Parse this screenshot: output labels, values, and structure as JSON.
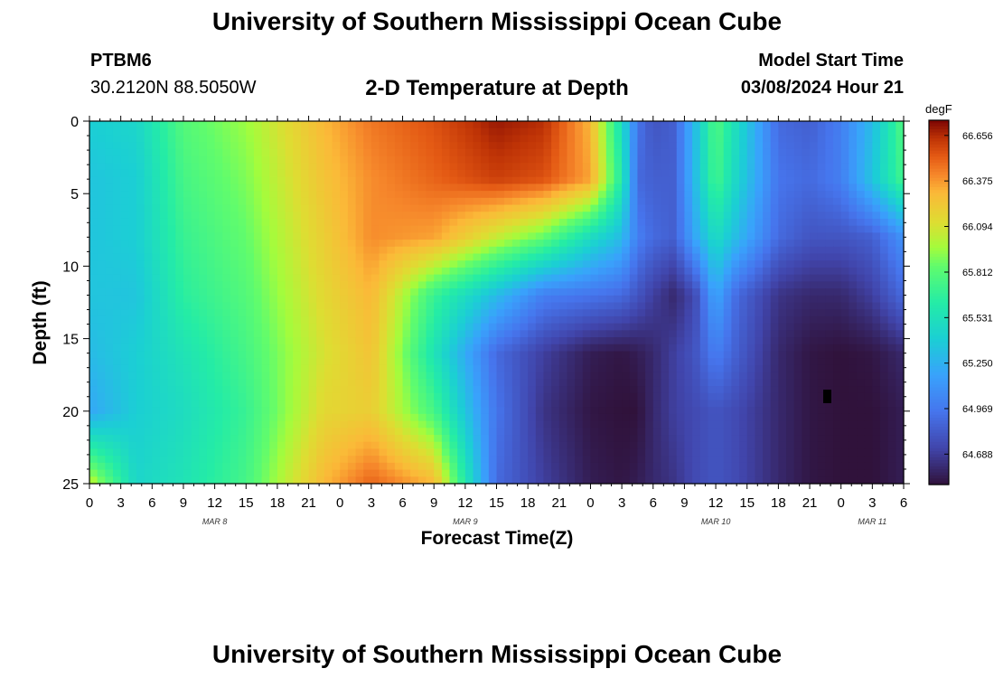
{
  "header": {
    "title": "University of Southern Mississippi Ocean Cube",
    "station_id": "PTBM6",
    "coordinates": "30.2120N  88.5050W",
    "subtitle": "2-D Temperature at Depth",
    "model_start_label": "Model Start Time",
    "model_start_value": "03/08/2024 Hour 21"
  },
  "footer": {
    "title": "University of Southern Mississippi Ocean Cube"
  },
  "colorbar": {
    "unit": "degF",
    "ticks": [
      "66.656",
      "66.375",
      "66.094",
      "65.812",
      "65.531",
      "65.250",
      "64.969",
      "64.688"
    ],
    "min": 64.5,
    "max": 66.75
  },
  "chart_data": {
    "type": "heatmap",
    "title": "2-D Temperature at Depth",
    "xlabel": "Forecast Time(Z)",
    "ylabel": "Depth (ft)",
    "x_tick_labels": [
      "0",
      "3",
      "6",
      "9",
      "12",
      "15",
      "18",
      "21",
      "0",
      "3",
      "6",
      "9",
      "12",
      "15",
      "18",
      "21",
      "0",
      "3",
      "6",
      "9",
      "12",
      "15",
      "18",
      "21",
      "0",
      "3",
      "6"
    ],
    "x_range_hours": [
      0,
      78
    ],
    "date_labels": [
      {
        "hour": 12,
        "label": "MAR 8"
      },
      {
        "hour": 36,
        "label": "MAR 9"
      },
      {
        "hour": 60,
        "label": "MAR 10"
      },
      {
        "hour": 75,
        "label": "MAR 11"
      }
    ],
    "y_tick_labels": [
      "0",
      "5",
      "10",
      "15",
      "20",
      "25"
    ],
    "y_range_ft": [
      0,
      25
    ],
    "value_unit": "degF",
    "value_range": [
      64.5,
      66.75
    ],
    "description_grid": {
      "time_hours": [
        0,
        4.5,
        9,
        15,
        22.5,
        27,
        33,
        39,
        43.5,
        48,
        51,
        52.5,
        54,
        56,
        58,
        60,
        62,
        66,
        69,
        72,
        75,
        78
      ],
      "depth_ft": [
        0,
        4,
        8,
        12,
        16,
        20,
        25
      ],
      "temp_degF": [
        [
          65.4,
          65.45,
          65.8,
          65.95,
          66.3,
          66.45,
          66.55,
          66.7,
          66.65,
          66.3,
          65.5,
          64.95,
          64.8,
          64.85,
          65.3,
          65.8,
          65.5,
          64.9,
          64.85,
          65.0,
          65.3,
          65.8
        ],
        [
          65.35,
          65.4,
          65.75,
          65.9,
          66.25,
          66.4,
          66.5,
          66.6,
          66.55,
          66.35,
          65.6,
          64.9,
          64.85,
          64.85,
          65.3,
          65.75,
          65.45,
          64.95,
          64.9,
          65.0,
          65.35,
          65.75
        ],
        [
          65.35,
          65.4,
          65.7,
          65.85,
          66.2,
          66.4,
          66.35,
          66.05,
          65.85,
          65.5,
          65.3,
          65.0,
          64.9,
          64.85,
          65.2,
          65.5,
          65.3,
          64.9,
          64.8,
          64.8,
          64.85,
          65.1
        ],
        [
          65.35,
          65.35,
          65.65,
          65.8,
          66.15,
          66.3,
          65.7,
          65.3,
          65.0,
          64.95,
          64.9,
          64.8,
          64.7,
          64.6,
          64.75,
          65.2,
          64.9,
          64.65,
          64.6,
          64.6,
          64.7,
          64.9
        ],
        [
          65.3,
          65.4,
          65.55,
          65.75,
          66.1,
          66.25,
          65.55,
          64.9,
          64.7,
          64.55,
          64.52,
          64.55,
          64.6,
          64.7,
          64.8,
          65.0,
          64.85,
          64.6,
          64.52,
          64.5,
          64.52,
          64.6
        ],
        [
          65.2,
          65.4,
          65.5,
          65.7,
          66.15,
          66.2,
          65.75,
          64.95,
          64.65,
          64.52,
          64.5,
          64.5,
          64.6,
          64.7,
          64.75,
          64.8,
          64.75,
          64.6,
          64.52,
          64.5,
          64.5,
          64.55
        ],
        [
          66.05,
          65.45,
          65.55,
          65.75,
          66.3,
          66.5,
          66.3,
          64.9,
          64.7,
          64.55,
          64.52,
          64.55,
          64.6,
          64.65,
          64.75,
          64.8,
          64.75,
          64.6,
          64.52,
          64.5,
          64.5,
          64.55
        ]
      ]
    }
  }
}
